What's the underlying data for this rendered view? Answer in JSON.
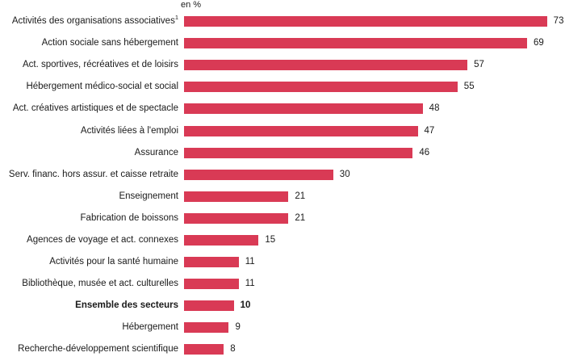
{
  "chart_data": {
    "type": "bar",
    "orientation": "horizontal",
    "title": "",
    "xlabel": "",
    "ylabel": "",
    "unit_label": "en %",
    "xlim": [
      0,
      75
    ],
    "grid": false,
    "legend": false,
    "bar_color": "#d93a55",
    "text_color": "#1a1a1a",
    "categories": [
      "Activités des organisations associatives",
      "Action sociale sans hébergement",
      "Act. sportives, récréatives et de loisirs",
      "Hébergement médico-social et social",
      "Act. créatives artistiques et de spectacle",
      "Activités liées à l'emploi",
      "Assurance",
      "Serv. financ. hors assur. et caisse retraite",
      "Enseignement",
      "Fabrication de boissons",
      "Agences de voyage et act. connexes",
      "Activités pour la santé humaine",
      "Bibliothèque, musée et act. culturelles",
      "Ensemble des secteurs",
      "Hébergement",
      "Recherche-développement scientifique"
    ],
    "values": [
      73,
      69,
      57,
      55,
      48,
      47,
      46,
      30,
      21,
      21,
      15,
      11,
      11,
      10,
      9,
      8
    ],
    "emphasized_category": "Ensemble des secteurs",
    "footnote": {
      "category": "Activités des organisations associatives",
      "marker": "1"
    }
  }
}
